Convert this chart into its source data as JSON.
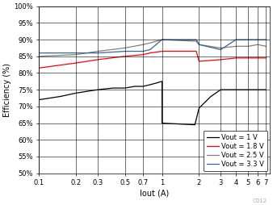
{
  "title": "",
  "xlabel": "Iout (A)",
  "ylabel": "Efficiency (%)",
  "watermark": "C012",
  "legend": [
    {
      "label": "Vout = 1 V",
      "color": "#000000"
    },
    {
      "label": "Vout = 1.8 V",
      "color": "#ff0000"
    },
    {
      "label": "Vout = 2.5 V",
      "color": "#808080"
    },
    {
      "label": "Vout = 3.3 V",
      "color": "#336699"
    }
  ],
  "series": {
    "vout1": {
      "color": "#000000",
      "x": [
        0.1,
        0.15,
        0.2,
        0.3,
        0.4,
        0.5,
        0.6,
        0.7,
        0.8,
        0.9,
        1.0,
        1.0,
        1.85,
        2.0,
        2.5,
        3.0,
        4.0,
        5.0,
        6.0,
        7.0
      ],
      "y": [
        72,
        73,
        74,
        75,
        75.5,
        75.5,
        76,
        76,
        76.5,
        77,
        77.5,
        65.0,
        64.5,
        69.5,
        73,
        75,
        75,
        75,
        75,
        75
      ]
    },
    "vout1_8": {
      "color": "#ff0000",
      "x": [
        0.1,
        0.2,
        0.3,
        0.5,
        0.7,
        0.8,
        1.0,
        1.9,
        2.0,
        3.0,
        4.0,
        5.0,
        6.0,
        7.0
      ],
      "y": [
        81.5,
        83,
        84,
        85,
        85.5,
        86,
        86.5,
        86.5,
        83.5,
        84,
        84.5,
        84.5,
        84.5,
        84.5
      ]
    },
    "vout2_5": {
      "color": "#808080",
      "x": [
        0.1,
        0.2,
        0.3,
        0.5,
        0.7,
        0.8,
        1.0,
        1.9,
        2.0,
        3.0,
        4.0,
        5.0,
        6.0,
        7.0
      ],
      "y": [
        85,
        85.5,
        86.5,
        87.5,
        88.5,
        89,
        90,
        89.5,
        88.5,
        87.5,
        88,
        88,
        88.5,
        88
      ]
    },
    "vout3_3": {
      "color": "#336699",
      "x": [
        0.1,
        0.2,
        0.3,
        0.5,
        0.7,
        0.8,
        1.0,
        1.9,
        2.0,
        3.0,
        4.0,
        5.0,
        6.0,
        7.0
      ],
      "y": [
        86,
        86,
        86,
        86.5,
        86.5,
        87,
        90,
        90,
        88.5,
        87,
        90,
        90,
        90,
        90
      ]
    }
  },
  "xlim_log": [
    0.1,
    7.5
  ],
  "xticks": [
    0.1,
    0.2,
    0.3,
    0.5,
    0.7,
    1,
    2,
    3,
    4,
    5,
    6,
    7
  ],
  "xtick_labels": [
    "0.1",
    "0.2",
    "0.3",
    "0.5",
    "0.7",
    "1",
    "2",
    "3",
    "4",
    "5",
    "6",
    "7"
  ],
  "ylim": [
    50,
    100
  ],
  "yticks": [
    50,
    55,
    60,
    65,
    70,
    75,
    80,
    85,
    90,
    95,
    100
  ],
  "ytick_labels": [
    "50%",
    "55%",
    "60%",
    "65%",
    "70%",
    "75%",
    "80%",
    "85%",
    "90%",
    "95%",
    "100%"
  ],
  "grid_color": "#000000",
  "background_color": "#ffffff",
  "fontsize_labels": 7,
  "fontsize_ticks": 6,
  "fontsize_legend": 6
}
